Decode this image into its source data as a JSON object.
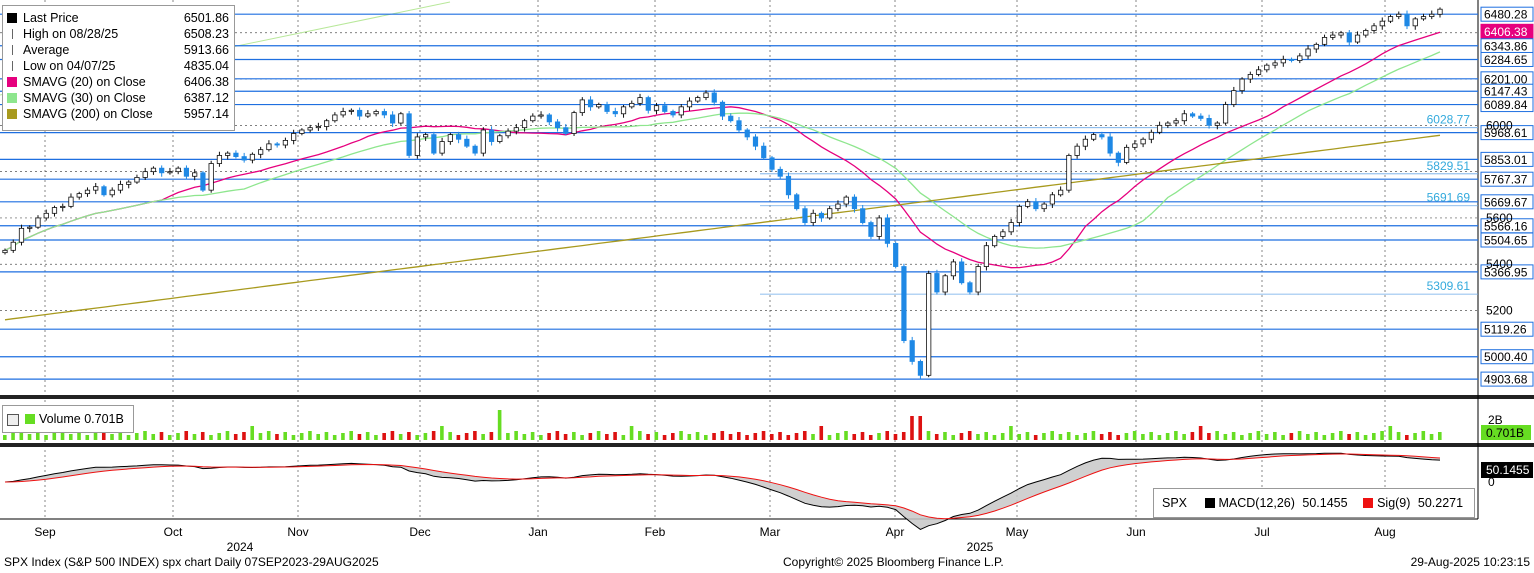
{
  "legend": {
    "rows": [
      {
        "label": "Last Price",
        "value": "6501.86",
        "color": "#000000",
        "marker": "box"
      },
      {
        "label": "High on 08/28/25",
        "value": "6508.23",
        "color": "#666666",
        "marker": "high-icon"
      },
      {
        "label": "Average",
        "value": "5913.66",
        "color": "#666666",
        "marker": "average-icon"
      },
      {
        "label": "Low on 04/07/25",
        "value": "4835.04",
        "color": "#666666",
        "marker": "low-icon"
      },
      {
        "label": "SMAVG (20)  on Close",
        "value": "6406.38",
        "color": "#e6007e",
        "marker": "box"
      },
      {
        "label": "SMAVG (30)  on Close",
        "value": "6387.12",
        "color": "#8ee68e",
        "marker": "box"
      },
      {
        "label": "SMAVG (200)  on Close",
        "value": "5957.14",
        "color": "#a89a1e",
        "marker": "box"
      }
    ]
  },
  "volume_legend": {
    "label": "Volume",
    "value": "0.701B",
    "color": "#66dd22"
  },
  "macd_legend": {
    "ticker": "SPX",
    "macd_label": "MACD(12,26)",
    "macd_value": "50.1455",
    "sig_label": "Sig(9)",
    "sig_value": "50.2271",
    "macd_color": "#000000",
    "sig_color": "#ee1111"
  },
  "footer": {
    "left": "SPX Index (S&P 500 INDEX) spx chart  Daily 07SEP2023-29AUG2025",
    "center": "Copyright© 2025 Bloomberg Finance L.P.",
    "right": "29-Aug-2025 10:23:15"
  },
  "colors": {
    "up_candle": "#111111",
    "down_candle": "#1e88e5",
    "hline": "#1e6fe0",
    "hline_label": "#33aadd",
    "sma20": "#e6007e",
    "sma30": "#8ee68e",
    "sma200": "#a89a1e",
    "vol_up": "#66dd22",
    "vol_down": "#dd1111",
    "macd_fill": "#aaaaaa",
    "macd_fill_neg": "#f08080"
  },
  "chart_data": {
    "type": "candlestick",
    "title": "",
    "y_axis": {
      "ticks": [
        5200,
        5400,
        5600,
        6000
      ],
      "tick_labels": [
        "5200",
        "5400",
        "5600",
        "6000"
      ],
      "range": [
        4835,
        6520
      ]
    },
    "x_axis": {
      "months": [
        "Sep",
        "Oct",
        "Nov",
        "Dec",
        "Jan",
        "Feb",
        "Mar",
        "Apr",
        "May",
        "Jun",
        "Jul",
        "Aug"
      ],
      "years": [
        "2024",
        "2025"
      ]
    },
    "right_labels": [
      {
        "value": 6480.28,
        "text": "6480.28",
        "style": "box"
      },
      {
        "value": 6406.38,
        "text": "6406.38",
        "style": "magenta"
      },
      {
        "value": 6343.86,
        "text": "6343.86",
        "style": "box"
      },
      {
        "value": 6284.65,
        "text": "6284.65",
        "style": "box"
      },
      {
        "value": 6201.0,
        "text": "6201.00",
        "style": "box"
      },
      {
        "value": 6147.43,
        "text": "6147.43",
        "style": "box"
      },
      {
        "value": 6089.84,
        "text": "6089.84",
        "style": "box"
      },
      {
        "value": 5968.61,
        "text": "5968.61",
        "style": "box"
      },
      {
        "value": 5853.01,
        "text": "5853.01",
        "style": "box"
      },
      {
        "value": 5767.37,
        "text": "5767.37",
        "style": "box"
      },
      {
        "value": 5669.67,
        "text": "5669.67",
        "style": "box"
      },
      {
        "value": 5566.16,
        "text": "5566.16",
        "style": "box"
      },
      {
        "value": 5504.65,
        "text": "5504.65",
        "style": "box"
      },
      {
        "value": 5366.95,
        "text": "5366.95",
        "style": "box"
      },
      {
        "value": 5119.26,
        "text": "5119.26",
        "style": "box"
      },
      {
        "value": 5000.4,
        "text": "5000.40",
        "style": "box"
      },
      {
        "value": 4903.68,
        "text": "4903.68",
        "style": "box"
      }
    ],
    "inline_labels": [
      {
        "value": 6028.77,
        "text": "6028.77"
      },
      {
        "value": 5829.51,
        "text": "5829.51"
      },
      {
        "value": 5691.69,
        "text": "5691.69"
      },
      {
        "value": 5309.61,
        "text": "5309.61"
      }
    ],
    "close_series": [
      5460,
      5495,
      5555,
      5560,
      5600,
      5620,
      5645,
      5650,
      5690,
      5705,
      5720,
      5735,
      5700,
      5720,
      5745,
      5755,
      5775,
      5800,
      5815,
      5795,
      5800,
      5815,
      5780,
      5795,
      5720,
      5835,
      5870,
      5880,
      5865,
      5850,
      5875,
      5895,
      5920,
      5915,
      5935,
      5965,
      5980,
      5990,
      5995,
      6020,
      6045,
      6060,
      6065,
      6040,
      6050,
      6060,
      6045,
      6010,
      6050,
      5870,
      5950,
      5960,
      5880,
      5930,
      5960,
      5940,
      5910,
      5880,
      5980,
      5930,
      5955,
      5975,
      5990,
      6020,
      6040,
      6045,
      6015,
      5990,
      5965,
      6055,
      6110,
      6080,
      6090,
      6060,
      6050,
      6080,
      6095,
      6120,
      6065,
      6085,
      6060,
      6045,
      6080,
      6105,
      6120,
      6140,
      6100,
      6040,
      6020,
      5980,
      5950,
      5910,
      5860,
      5810,
      5780,
      5700,
      5640,
      5580,
      5620,
      5600,
      5640,
      5660,
      5690,
      5640,
      5580,
      5520,
      5600,
      5490,
      5390,
      5070,
      4980,
      4920,
      5360,
      5280,
      5350,
      5410,
      5320,
      5280,
      5390,
      5480,
      5520,
      5540,
      5580,
      5650,
      5670,
      5640,
      5660,
      5700,
      5720,
      5870,
      5910,
      5940,
      5960,
      5950,
      5880,
      5840,
      5905,
      5920,
      5940,
      5970,
      6000,
      6010,
      6020,
      6050,
      6040,
      6030,
      6000,
      6010,
      6090,
      6150,
      6200,
      6220,
      6240,
      6260,
      6270,
      6285,
      6280,
      6300,
      6330,
      6350,
      6380,
      6390,
      6400,
      6360,
      6390,
      6410,
      6430,
      6450,
      6470,
      6480,
      6430,
      6460,
      6470,
      6480,
      6501.86
    ],
    "sma20_last": 6406.38,
    "sma30_last": 6387.12,
    "sma200_last": 5957.14,
    "volume_last": "0.701B",
    "volume_tick": "2B",
    "macd_last": 50.1455,
    "signal_last": 50.2271,
    "macd_tick": "0"
  }
}
